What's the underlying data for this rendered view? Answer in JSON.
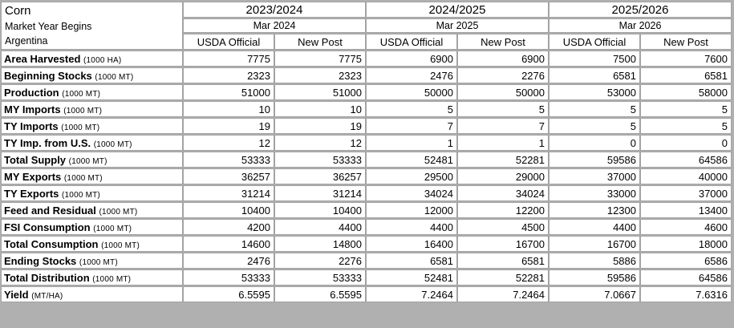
{
  "header": {
    "commodity": "Corn",
    "subtitle": "Market Year Begins",
    "country": "Argentina",
    "years": [
      {
        "label": "2023/2024",
        "begin": "Mar 2024"
      },
      {
        "label": "2024/2025",
        "begin": "Mar 2025"
      },
      {
        "label": "2025/2026",
        "begin": "Mar 2026"
      }
    ],
    "source_labels": [
      "USDA Official",
      "New Post"
    ]
  },
  "rows": [
    {
      "label": "Area Harvested",
      "unit": "(1000 HA)",
      "values": [
        "7775",
        "7775",
        "6900",
        "6900",
        "7500",
        "7600"
      ]
    },
    {
      "label": "Beginning Stocks",
      "unit": "(1000 MT)",
      "values": [
        "2323",
        "2323",
        "2476",
        "2276",
        "6581",
        "6581"
      ]
    },
    {
      "label": "Production",
      "unit": "(1000 MT)",
      "values": [
        "51000",
        "51000",
        "50000",
        "50000",
        "53000",
        "58000"
      ]
    },
    {
      "label": "MY Imports",
      "unit": "(1000 MT)",
      "values": [
        "10",
        "10",
        "5",
        "5",
        "5",
        "5"
      ]
    },
    {
      "label": "TY Imports",
      "unit": "(1000 MT)",
      "values": [
        "19",
        "19",
        "7",
        "7",
        "5",
        "5"
      ]
    },
    {
      "label": "TY Imp. from U.S.",
      "unit": "(1000 MT)",
      "values": [
        "12",
        "12",
        "1",
        "1",
        "0",
        "0"
      ]
    },
    {
      "label": "Total Supply",
      "unit": "(1000 MT)",
      "values": [
        "53333",
        "53333",
        "52481",
        "52281",
        "59586",
        "64586"
      ]
    },
    {
      "label": "MY Exports",
      "unit": "(1000 MT)",
      "values": [
        "36257",
        "36257",
        "29500",
        "29000",
        "37000",
        "40000"
      ]
    },
    {
      "label": "TY Exports",
      "unit": "(1000 MT)",
      "values": [
        "31214",
        "31214",
        "34024",
        "34024",
        "33000",
        "37000"
      ]
    },
    {
      "label": "Feed and Residual",
      "unit": "(1000 MT)",
      "values": [
        "10400",
        "10400",
        "12000",
        "12200",
        "12300",
        "13400"
      ]
    },
    {
      "label": "FSI Consumption",
      "unit": "(1000 MT)",
      "values": [
        "4200",
        "4400",
        "4400",
        "4500",
        "4400",
        "4600"
      ]
    },
    {
      "label": "Total Consumption",
      "unit": "(1000 MT)",
      "values": [
        "14600",
        "14800",
        "16400",
        "16700",
        "16700",
        "18000"
      ]
    },
    {
      "label": "Ending Stocks",
      "unit": "(1000 MT)",
      "values": [
        "2476",
        "2276",
        "6581",
        "6581",
        "5886",
        "6586"
      ]
    },
    {
      "label": "Total Distribution",
      "unit": "(1000 MT)",
      "values": [
        "53333",
        "53333",
        "52481",
        "52281",
        "59586",
        "64586"
      ]
    },
    {
      "label": "Yield",
      "unit": "(MT/HA)",
      "values": [
        "6.5595",
        "6.5595",
        "7.2464",
        "7.2464",
        "7.0667",
        "7.6316"
      ]
    }
  ],
  "colors": {
    "border": "#a3a3a3",
    "background": "#b0b0b0",
    "cell_bg": "#ffffff",
    "text": "#000000"
  }
}
